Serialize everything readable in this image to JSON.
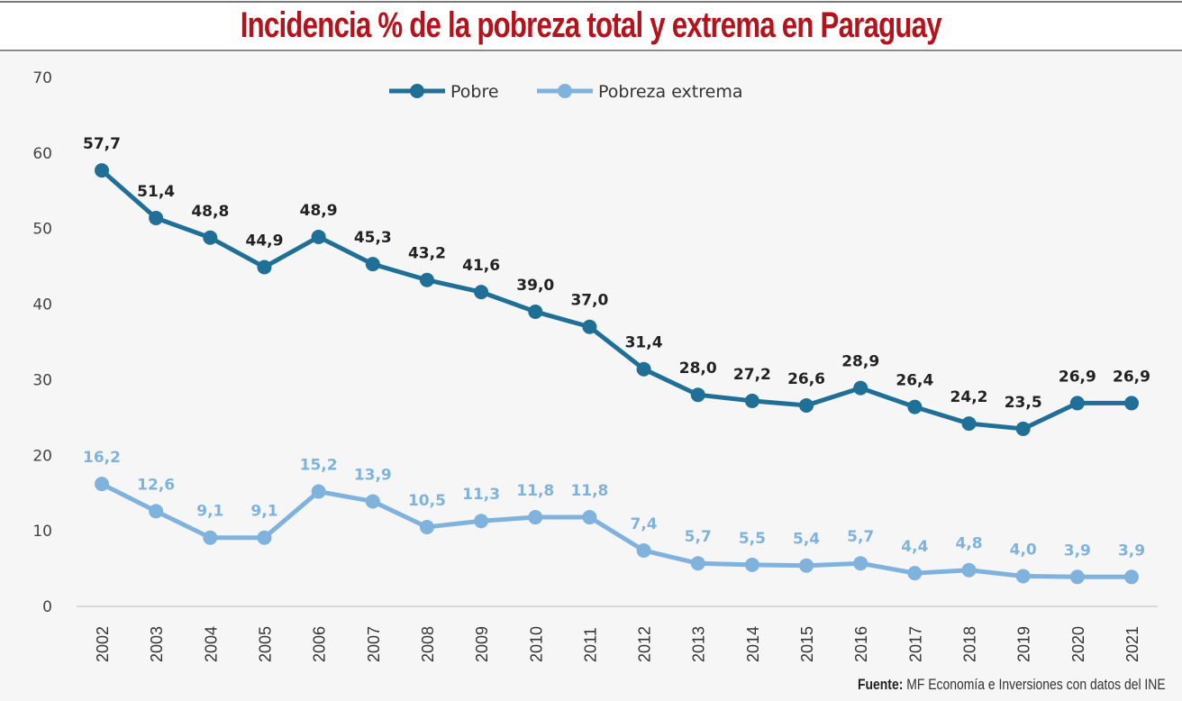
{
  "chart_data": {
    "type": "line",
    "title": "Incidencia % de la pobreza total y extrema en Paraguay",
    "categories": [
      "2002",
      "2003",
      "2004",
      "2005",
      "2006",
      "2007",
      "2008",
      "2009",
      "2010",
      "2011",
      "2012",
      "2013",
      "2014",
      "2015",
      "2016",
      "2017",
      "2018",
      "2019",
      "2020",
      "2021"
    ],
    "series": [
      {
        "name": "Pobre",
        "color": "#1f6f97",
        "label_color": "#222222",
        "values": [
          57.7,
          51.4,
          48.8,
          44.9,
          48.9,
          45.3,
          43.2,
          41.6,
          39.0,
          37.0,
          31.4,
          28.0,
          27.2,
          26.6,
          28.9,
          26.4,
          24.2,
          23.5,
          26.9,
          26.9
        ],
        "labels": [
          "57,7",
          "51,4",
          "48,8",
          "44,9",
          "48,9",
          "45,3",
          "43,2",
          "41,6",
          "39,0",
          "37,0",
          "31,4",
          "28,0",
          "27,2",
          "26,6",
          "28,9",
          "26,4",
          "24,2",
          "23,5",
          "26,9",
          "26,9"
        ]
      },
      {
        "name": "Pobreza extrema",
        "color": "#7fb3dd",
        "label_color": "#7fb3dd",
        "values": [
          16.2,
          12.6,
          9.1,
          9.1,
          15.2,
          13.9,
          10.5,
          11.3,
          11.8,
          11.8,
          7.4,
          5.7,
          5.5,
          5.4,
          5.7,
          4.4,
          4.8,
          4.0,
          3.9,
          3.9
        ],
        "labels": [
          "16,2",
          "12,6",
          "9,1",
          "9,1",
          "15,2",
          "13,9",
          "10,5",
          "11,3",
          "11,8",
          "11,8",
          "7,4",
          "5,7",
          "5,5",
          "5,4",
          "5,7",
          "4,4",
          "4,8",
          "4,0",
          "3,9",
          "3,9"
        ]
      }
    ],
    "yticks": [
      "0",
      "10",
      "20",
      "30",
      "40",
      "50",
      "60",
      "70"
    ],
    "ylim": [
      0,
      70
    ],
    "grid": false,
    "legend": "top-center"
  },
  "source": {
    "prefix": "Fuente:",
    "text": " MF Economía e Inversiones con datos del INE"
  }
}
